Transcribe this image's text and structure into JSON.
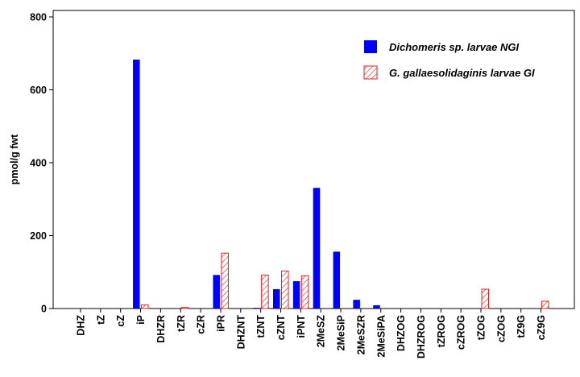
{
  "chart_data": {
    "type": "bar",
    "title": "",
    "xlabel": "",
    "ylabel": "pmol/g fwt",
    "ylim": [
      0,
      800
    ],
    "yticks": [
      0,
      200,
      400,
      600,
      800
    ],
    "grid": false,
    "legend_position": "top-right",
    "categories": [
      "DHZ",
      "tZ",
      "cZ",
      "iP",
      "DHZR",
      "tZR",
      "cZR",
      "iPR",
      "DHZNT",
      "tZNT",
      "cZNT",
      "iPNT",
      "2MeSZ",
      "2MeSiP",
      "2MeSZR",
      "2MeSiPA",
      "DHZOG",
      "DHZROG",
      "tZROG",
      "cZROG",
      "tZOG",
      "cZOG",
      "tZ9G",
      "cZ9G"
    ],
    "series": [
      {
        "name": "Dichomeris sp. larvae NGI",
        "color": "#0000ff",
        "pattern": "solid",
        "values": [
          0,
          0,
          0,
          683,
          0,
          0,
          0,
          92,
          0,
          2,
          53,
          75,
          331,
          156,
          24,
          9,
          0,
          0,
          0,
          0,
          0,
          0,
          0,
          0
        ]
      },
      {
        "name": "G. gallaesolidaginis larvae GI",
        "color": "#e02020",
        "pattern": "hatched",
        "values": [
          0,
          0,
          0,
          10,
          0,
          3,
          0,
          152,
          0,
          92,
          103,
          90,
          0,
          0,
          0,
          0,
          0,
          0,
          0,
          0,
          53,
          0,
          0,
          20
        ]
      }
    ]
  }
}
